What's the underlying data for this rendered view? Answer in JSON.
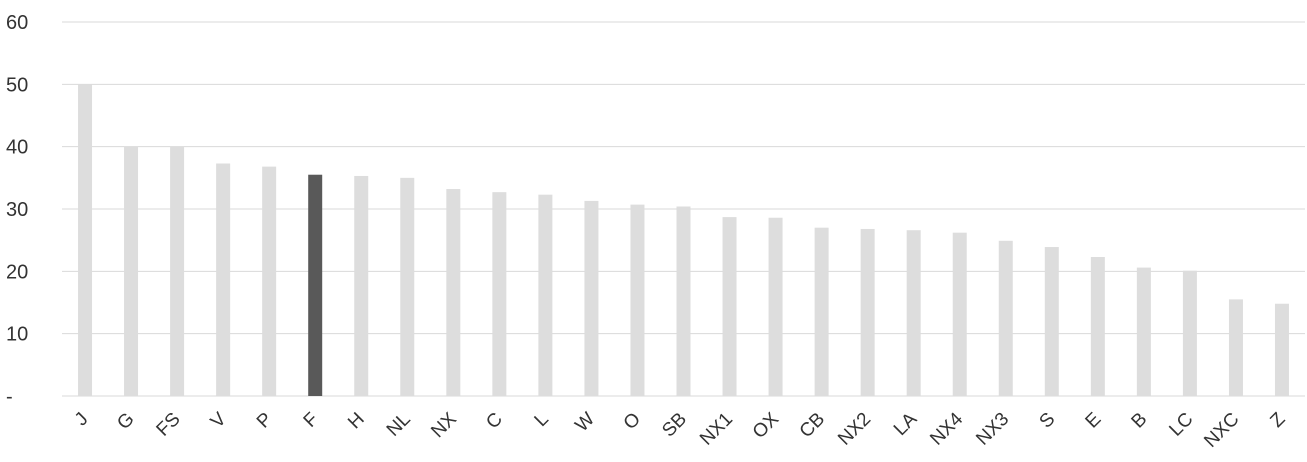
{
  "chart_data": {
    "type": "bar",
    "title": "",
    "xlabel": "",
    "ylabel": "",
    "ylim": [
      0,
      60
    ],
    "yticks": [
      0,
      10,
      20,
      30,
      40,
      50,
      60
    ],
    "ytick_labels": [
      "-",
      "10",
      "20",
      "30",
      "40",
      "50",
      "60"
    ],
    "grid": true,
    "legend": "none",
    "categories": [
      "J",
      "G",
      "FS",
      "V",
      "P",
      "F",
      "H",
      "NL",
      "NX",
      "C",
      "L",
      "W",
      "O",
      "SB",
      "NX1",
      "OX",
      "CB",
      "NX2",
      "LA",
      "NX4",
      "NX3",
      "S",
      "E",
      "B",
      "LC",
      "NXC",
      "Z"
    ],
    "values": [
      50,
      40,
      40,
      37.3,
      36.8,
      35.5,
      35.3,
      35,
      33.2,
      32.7,
      32.3,
      31.3,
      30.7,
      30.4,
      28.7,
      28.6,
      27,
      26.8,
      26.6,
      26.2,
      24.9,
      23.9,
      22.3,
      20.6,
      20.1,
      15.5,
      14.8
    ],
    "highlight_category": "F",
    "colors": {
      "bar": "#dddddd",
      "highlight": "#595959",
      "grid": "#d9d9d9",
      "text": "#333333"
    }
  }
}
